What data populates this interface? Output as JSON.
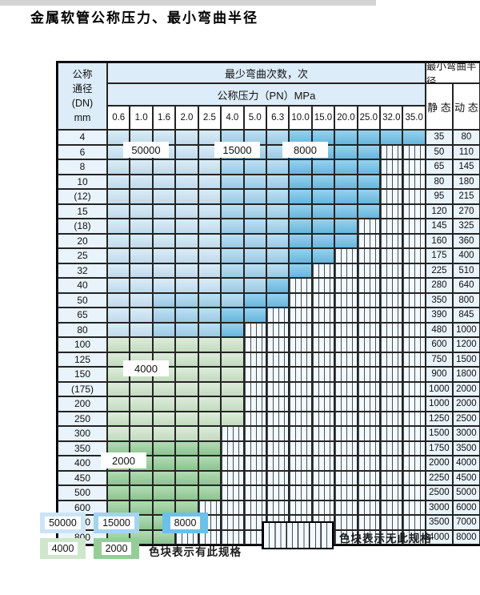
{
  "title": "金属软管公称压力、最小弯曲半径",
  "colors": {
    "blue_50000": "#cbe5f6",
    "blue_15000": "#a3d4ef",
    "blue_8000": "#6dc0e8",
    "green_4000": "#cee6ca",
    "green_2000": "#94ce97",
    "header_bg": "#dcecf8",
    "row_label_bg": "#e9f3fb",
    "stripe_bg": "#f3f9fd",
    "stripe_line": "#45525c",
    "grid_line": "#242424"
  },
  "table": {
    "header": {
      "dn_lines": [
        "公称",
        "通径",
        "(DN)",
        "mm"
      ],
      "bend_cycles": "最少弯曲次数，次",
      "pressure": "公称压力（PN）MPa",
      "pressures": [
        "0.6",
        "1.0",
        "1.6",
        "2.0",
        "2.5",
        "4.0",
        "5.0",
        "6.3",
        "10.0",
        "15.0",
        "20.0",
        "25.0",
        "32.0",
        "35.0"
      ],
      "radius": "最小弯曲半径",
      "static": "静 态",
      "dynamic": "动 态"
    },
    "overlay_labels": {
      "l50000": "50000",
      "l15000": "15000",
      "l8000": "8000",
      "l4000": "4000",
      "l2000": "2000"
    },
    "rows": [
      {
        "dn": "4",
        "cells": "LLLLLMMMDDDDDD",
        "static": "35",
        "dynamic": "80"
      },
      {
        "dn": "6",
        "cells": "LLLLLMMMDDDDxx",
        "static": "50",
        "dynamic": "110"
      },
      {
        "dn": "8",
        "cells": "LLLLLMMMDDDDxx",
        "static": "65",
        "dynamic": "145"
      },
      {
        "dn": "10",
        "cells": "LLLLLMMMDDDDxx",
        "static": "80",
        "dynamic": "180"
      },
      {
        "dn": "(12)",
        "cells": "LLLLLMMMDDDDxx",
        "static": "95",
        "dynamic": "215"
      },
      {
        "dn": "15",
        "cells": "LLLLLMMMDDDDxx",
        "static": "120",
        "dynamic": "270"
      },
      {
        "dn": "(18)",
        "cells": "LLLLLMMMDDDxxx",
        "static": "145",
        "dynamic": "325"
      },
      {
        "dn": "20",
        "cells": "LLLLLMMMDDDxxx",
        "static": "160",
        "dynamic": "360"
      },
      {
        "dn": "25",
        "cells": "LLLLLMMMDDxxxx",
        "static": "175",
        "dynamic": "400"
      },
      {
        "dn": "32",
        "cells": "LLLLLMMMDxxxxx",
        "static": "225",
        "dynamic": "510"
      },
      {
        "dn": "40",
        "cells": "LLLLLMMDxxxxxx",
        "static": "280",
        "dynamic": "640"
      },
      {
        "dn": "50",
        "cells": "LLMMMMDDxxxxxx",
        "static": "350",
        "dynamic": "800"
      },
      {
        "dn": "65",
        "cells": "LLMMMDDxxxxxxx",
        "static": "390",
        "dynamic": "845"
      },
      {
        "dn": "80",
        "cells": "LLMMMDxxxxxxxx",
        "static": "480",
        "dynamic": "1000"
      },
      {
        "dn": "100",
        "cells": "ggggggxxxxxxxx",
        "static": "600",
        "dynamic": "1200"
      },
      {
        "dn": "125",
        "cells": "ggggggxxxxxxxx",
        "static": "750",
        "dynamic": "1500"
      },
      {
        "dn": "150",
        "cells": "ggggggxxxxxxxx",
        "static": "900",
        "dynamic": "1800"
      },
      {
        "dn": "(175)",
        "cells": "ggggggxxxxxxxx",
        "static": "1000",
        "dynamic": "2000"
      },
      {
        "dn": "200",
        "cells": "ggggggxxxxxxxx",
        "static": "1000",
        "dynamic": "2000"
      },
      {
        "dn": "250",
        "cells": "ggggggxxxxxxxx",
        "static": "1250",
        "dynamic": "2500"
      },
      {
        "dn": "300",
        "cells": "gggggxxxxxxxxx",
        "static": "1500",
        "dynamic": "3000"
      },
      {
        "dn": "350",
        "cells": "GGGGGxxxxxxxxx",
        "static": "1750",
        "dynamic": "3500"
      },
      {
        "dn": "400",
        "cells": "GGGGGxxxxxxxxx",
        "static": "2000",
        "dynamic": "4000"
      },
      {
        "dn": "450",
        "cells": "GGGGGxxxxxxxxx",
        "static": "2250",
        "dynamic": "4500"
      },
      {
        "dn": "500",
        "cells": "GGGGGxxxxxxxxx",
        "static": "2500",
        "dynamic": "5000"
      },
      {
        "dn": "600",
        "cells": "GGGGxxxxxxxxxx",
        "static": "3000",
        "dynamic": "6000"
      },
      {
        "dn": "700",
        "cells": "GGGxxxxxxxxxxx",
        "static": "3500",
        "dynamic": "7000"
      },
      {
        "dn": "800",
        "cells": "GGGxxxxxxxxxxx",
        "static": "4000",
        "dynamic": "8000"
      }
    ]
  },
  "legend": {
    "items": [
      {
        "label": "50000",
        "color": "#cbe5f6"
      },
      {
        "label": "15000",
        "color": "#a3d4ef"
      },
      {
        "label": "8000",
        "color": "#6dc0e8"
      },
      {
        "label": "4000",
        "color": "#cee6ca"
      },
      {
        "label": "2000",
        "color": "#94ce97"
      }
    ],
    "has_spec": "色块表示有此规格",
    "no_spec": "色块表示无此规格"
  }
}
